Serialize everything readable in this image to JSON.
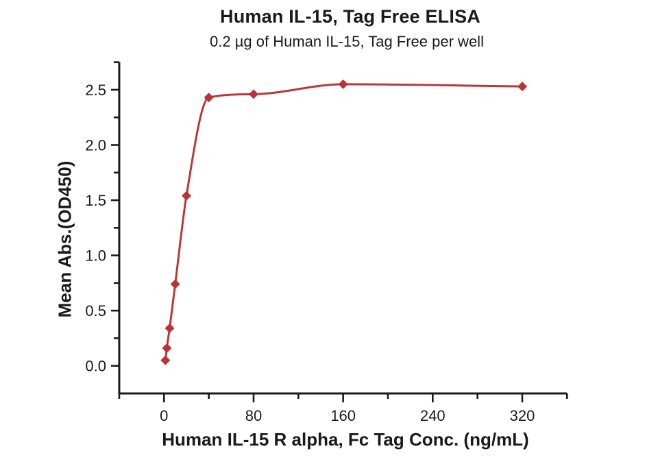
{
  "chart_data": {
    "type": "scatter-line",
    "title": "Human IL-15, Tag Free ELISA",
    "subtitle": "0.2 µg of Human IL-15, Tag Free per well",
    "xlabel": "Human IL-15 R alpha, Fc Tag Conc. (ng/mL)",
    "ylabel": "Mean Abs.(OD450)",
    "x": [
      1.25,
      2.5,
      5,
      10,
      20,
      40,
      80,
      160,
      320
    ],
    "y": [
      0.05,
      0.16,
      0.34,
      0.74,
      1.54,
      2.43,
      2.46,
      2.55,
      2.53
    ],
    "xlim": [
      -40,
      360
    ],
    "ylim": [
      -0.25,
      2.75
    ],
    "x_major_tick_values": [
      0,
      80,
      160,
      240,
      320
    ],
    "x_major_tick_labels": [
      "0",
      "80",
      "160",
      "240",
      "320"
    ],
    "x_minor_tick_values": [
      -40,
      40,
      120,
      200,
      280,
      360
    ],
    "y_major_tick_values": [
      0,
      0.5,
      1,
      1.5,
      2,
      2.5
    ],
    "y_major_tick_labels": [
      "0.0",
      "0.5",
      "1.0",
      "1.5",
      "2.0",
      "2.5"
    ],
    "y_minor_tick_values": [
      0.25,
      0.75,
      1.25,
      1.75,
      2.25,
      2.75
    ],
    "marker": "diamond",
    "grid": false,
    "legend": "none",
    "colors": {
      "line": "#B9373A",
      "marker": "#BE3134",
      "axis": "#1a1a1a",
      "text": "#1a1a1a"
    }
  }
}
